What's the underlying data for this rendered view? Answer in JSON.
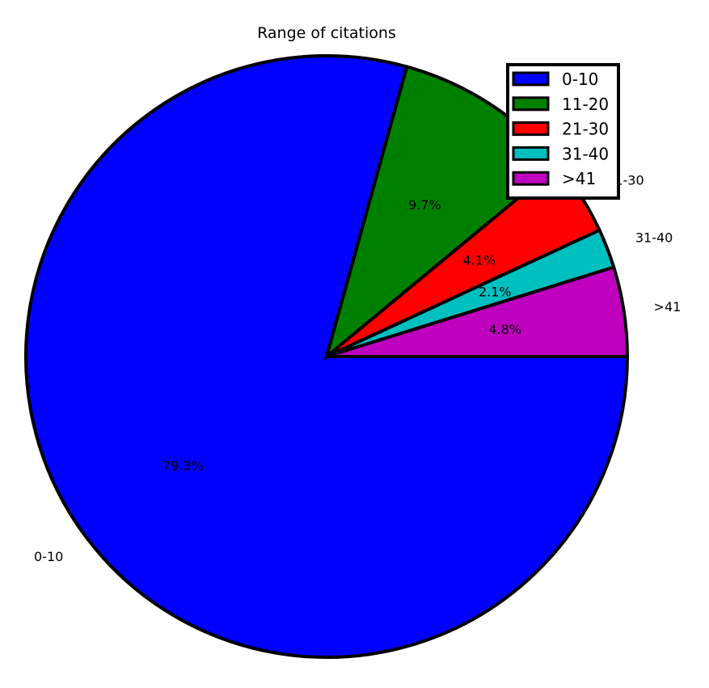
{
  "chart_data": {
    "type": "pie",
    "title": "Range of citations",
    "start_angle_deg": 0,
    "direction": "clockwise",
    "legend_position": "top-right",
    "slices": [
      {
        "label": "0-10",
        "value": 79.3,
        "pct_label": "79.3%",
        "color": "#0000ff"
      },
      {
        "label": "11-20",
        "value": 9.7,
        "pct_label": "9.7%",
        "color": "#008000"
      },
      {
        "label": "21-30",
        "value": 4.1,
        "pct_label": "4.1%",
        "color": "#ff0000"
      },
      {
        "label": "31-40",
        "value": 2.1,
        "pct_label": "2.1%",
        "color": "#00bfbf"
      },
      {
        "label": ">41",
        "value": 4.8,
        "pct_label": "4.8%",
        "color": "#bf00bf"
      }
    ]
  }
}
